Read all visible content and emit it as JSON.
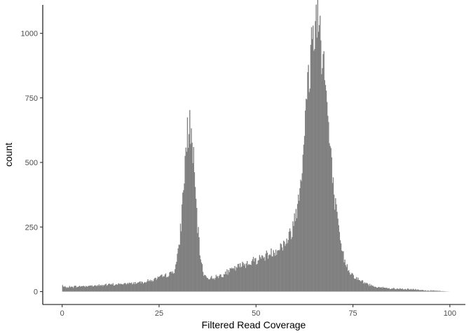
{
  "chart_data": {
    "type": "bar",
    "subtype": "histogram",
    "title": "",
    "xlabel": "Filtered Read Coverage",
    "ylabel": "count",
    "xlim": [
      -5,
      104
    ],
    "ylim": [
      -50,
      1110
    ],
    "x_ticks": [
      0,
      25,
      50,
      75,
      100
    ],
    "x_tick_labels": [
      "0",
      "25",
      "50",
      "75",
      "100"
    ],
    "y_ticks": [
      0,
      250,
      500,
      750,
      1000
    ],
    "y_tick_labels": [
      "0",
      "250",
      "500",
      "750",
      "1000"
    ],
    "bin_range": [
      0,
      100
    ],
    "bin_width": 0.2,
    "grid": false,
    "legend": "none",
    "bar_color": "#808080",
    "features": [
      {
        "x": 0,
        "value": 25
      },
      {
        "x": 32.8,
        "value": 670
      },
      {
        "x": 44,
        "value": 90
      },
      {
        "x": 65.8,
        "value": 1055
      },
      {
        "x": 75,
        "value": 30
      },
      {
        "x": 100,
        "value": 0
      }
    ]
  },
  "colors": {
    "background": "#ffffff",
    "bars": "#808080",
    "axis": "#000000",
    "tick_text": "#4d4d4d"
  }
}
